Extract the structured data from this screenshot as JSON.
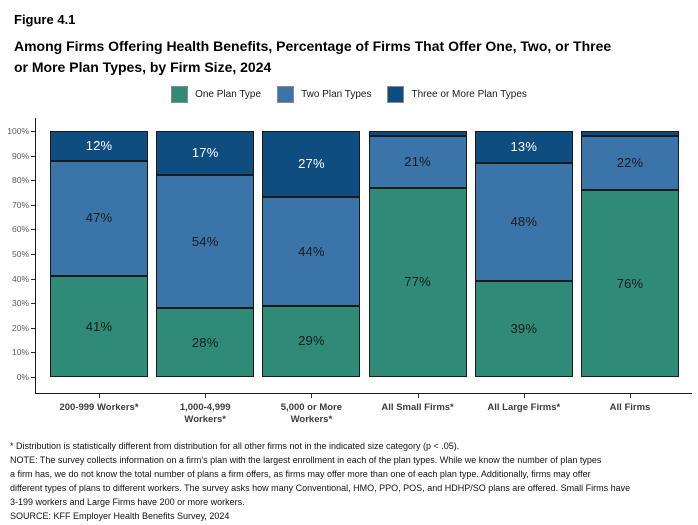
{
  "figure_label": "Figure 4.1",
  "title_lines": [
    "Among Firms Offering Health Benefits, Percentage of Firms That Offer One, Two, or Three",
    "or More Plan Types, by Firm Size, 2024"
  ],
  "chart_data": {
    "type": "bar",
    "subtype": "stacked-percent",
    "legend_position": "top",
    "grid": false,
    "categories": [
      [
        "200-999 Workers*"
      ],
      [
        "1,000-4,999",
        "Workers*"
      ],
      [
        "5,000 or More",
        "Workers*"
      ],
      [
        "All Small Firms*"
      ],
      [
        "All Large Firms*"
      ],
      [
        "All Firms"
      ]
    ],
    "series": [
      {
        "name": "One Plan Type",
        "color": "#2F8A78",
        "label_color": "#1a1a1a",
        "values": [
          41,
          28,
          29,
          77,
          39,
          76
        ],
        "labels": [
          "41%",
          "28%",
          "29%",
          "77%",
          "39%",
          "76%"
        ]
      },
      {
        "name": "Two Plan Types",
        "color": "#3B74A9",
        "label_color": "#1a1a1a",
        "values": [
          47,
          54,
          44,
          21,
          48,
          22
        ],
        "labels": [
          "47%",
          "54%",
          "44%",
          "21%",
          "48%",
          "22%"
        ]
      },
      {
        "name": "Three or More Plan Types",
        "color": "#0F4C80",
        "label_color": "#ffffff",
        "values": [
          12,
          17,
          27,
          2,
          13,
          2
        ],
        "labels": [
          "12%",
          "17%",
          "27%",
          "",
          "13%",
          ""
        ]
      }
    ],
    "y_axis": {
      "min": 0,
      "max": 100,
      "tick_labels": [
        "0%",
        "10%",
        "20%",
        "30%",
        "40%",
        "50%",
        "60%",
        "70%",
        "80%",
        "90%",
        "100%"
      ]
    }
  },
  "footnote_lines": [
    "* Distribution is statistically different from distribution for all other firms not in the indicated size category (p < .05).",
    "NOTE: The survey collects information on a firm's plan with the largest enrollment in each of the plan types. While we know the number of plan types",
    "a firm has, we do not know the total number of plans a firm offers, as firms may offer more than one of each plan type. Additionally, firms may offer",
    "different types of plans to different workers. The survey asks how many Conventional, HMO, PPO, POS, and HDHP/SO plans are offered. Small Firms have",
    "3-199 workers and Large Firms have 200 or more workers.",
    "SOURCE: KFF Employer Health Benefits Survey, 2024"
  ]
}
